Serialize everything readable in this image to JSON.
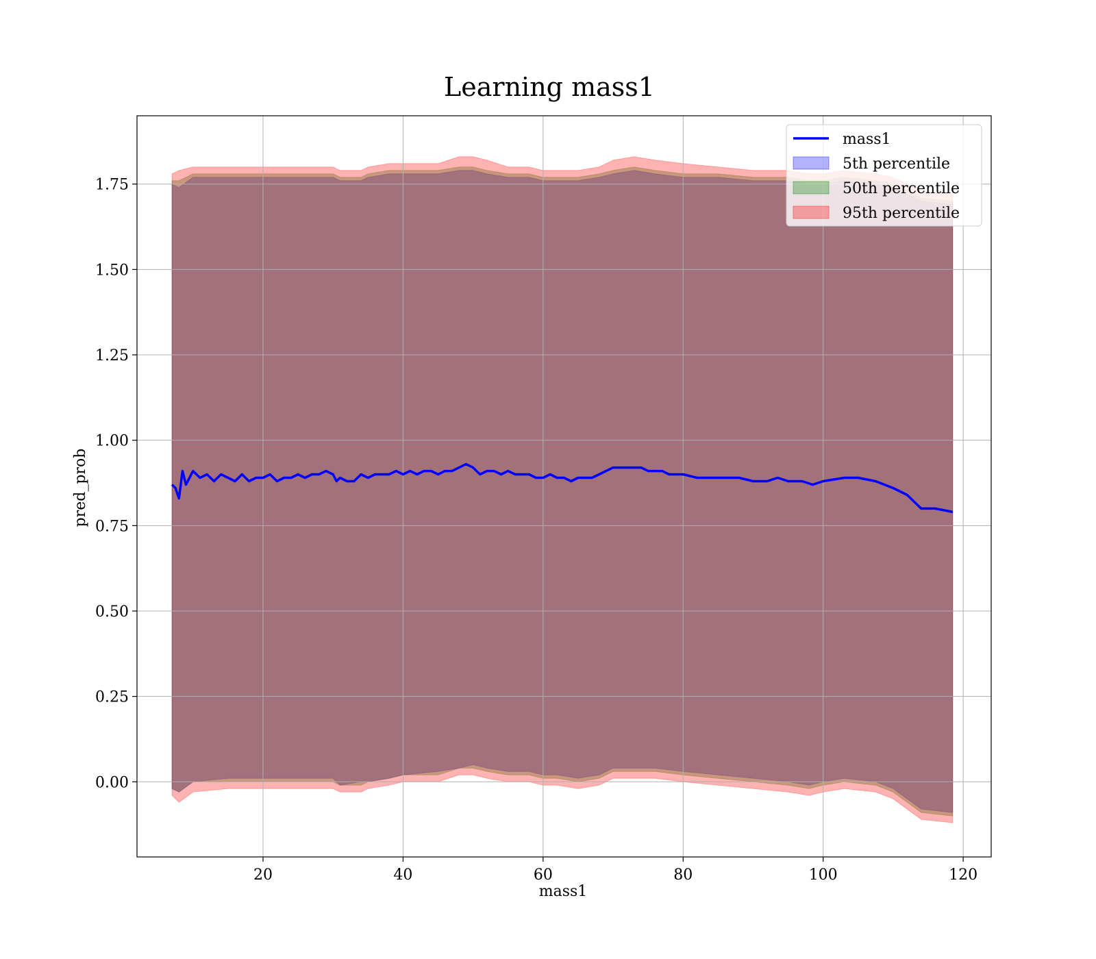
{
  "chart_data": {
    "type": "line",
    "title": "Learning mass1",
    "xlabel": "mass1",
    "ylabel": "pred_prob",
    "xlim": [
      2,
      124
    ],
    "ylim": [
      -0.22,
      1.95
    ],
    "xticks": [
      "20",
      "40",
      "60",
      "80",
      "100",
      "120"
    ],
    "xtick_values": [
      20,
      40,
      60,
      80,
      100,
      120
    ],
    "yticks": [
      "0.00",
      "0.25",
      "0.50",
      "0.75",
      "1.00",
      "1.25",
      "1.50",
      "1.75"
    ],
    "ytick_values": [
      0,
      0.25,
      0.5,
      0.75,
      1.0,
      1.25,
      1.5,
      1.75
    ],
    "grid": true,
    "legend_position": "top-right",
    "legend": [
      "mass1",
      "5th percentile",
      "50th percentile",
      "95th percentile"
    ],
    "series": [
      {
        "name": "mass1",
        "kind": "line",
        "color": "#0000ff",
        "x": [
          7.0,
          7.5,
          8.0,
          8.5,
          9.0,
          10.0,
          11.0,
          12.0,
          13.0,
          14.0,
          15.0,
          16.0,
          17.0,
          18.0,
          19.0,
          20.0,
          21.0,
          22.0,
          23.0,
          24.0,
          25.0,
          26.0,
          27.0,
          28.0,
          29.0,
          30.0,
          30.5,
          31.0,
          32.0,
          33.0,
          34.0,
          35.0,
          36.0,
          37.0,
          38.0,
          39.0,
          40.0,
          41.0,
          42.0,
          43.0,
          44.0,
          45.0,
          46.0,
          47.0,
          48.0,
          49.0,
          50.0,
          51.0,
          52.0,
          53.0,
          54.0,
          55.0,
          56.0,
          57.0,
          58.0,
          59.0,
          60.0,
          61.0,
          62.0,
          63.0,
          64.0,
          65.0,
          66.0,
          67.0,
          68.0,
          69.0,
          70.0,
          71.0,
          72.0,
          73.0,
          74.0,
          75.0,
          76.0,
          77.0,
          78.0,
          80.0,
          82.0,
          84.0,
          86.0,
          88.0,
          90.0,
          92.0,
          93.5,
          95.0,
          97.0,
          98.5,
          100.0,
          103.0,
          105.0,
          107.5,
          110.0,
          112.0,
          114.0,
          116.0,
          118.5
        ],
        "y": [
          0.87,
          0.86,
          0.83,
          0.91,
          0.87,
          0.91,
          0.89,
          0.9,
          0.88,
          0.9,
          0.89,
          0.88,
          0.9,
          0.88,
          0.89,
          0.89,
          0.9,
          0.88,
          0.89,
          0.89,
          0.9,
          0.89,
          0.9,
          0.9,
          0.91,
          0.9,
          0.88,
          0.89,
          0.88,
          0.88,
          0.9,
          0.89,
          0.9,
          0.9,
          0.9,
          0.91,
          0.9,
          0.91,
          0.9,
          0.91,
          0.91,
          0.9,
          0.91,
          0.91,
          0.92,
          0.93,
          0.92,
          0.9,
          0.91,
          0.91,
          0.9,
          0.91,
          0.9,
          0.9,
          0.9,
          0.89,
          0.89,
          0.9,
          0.89,
          0.89,
          0.88,
          0.89,
          0.89,
          0.89,
          0.9,
          0.91,
          0.92,
          0.92,
          0.92,
          0.92,
          0.92,
          0.91,
          0.91,
          0.91,
          0.9,
          0.9,
          0.89,
          0.89,
          0.89,
          0.89,
          0.88,
          0.88,
          0.89,
          0.88,
          0.88,
          0.87,
          0.88,
          0.89,
          0.89,
          0.88,
          0.86,
          0.84,
          0.8,
          0.8,
          0.79
        ]
      },
      {
        "name": "5th percentile",
        "kind": "band",
        "color": "#0000ff",
        "alpha": 0.3,
        "x": [
          7.0,
          8.0,
          10.0,
          15.0,
          20.0,
          25.0,
          30.0,
          31.0,
          34.0,
          35.0,
          38.0,
          40.0,
          45.0,
          48.0,
          50.0,
          52.0,
          55.0,
          58.0,
          60.0,
          62.0,
          65.0,
          68.0,
          70.0,
          73.0,
          76.0,
          80.0,
          85.0,
          90.0,
          95.0,
          98.0,
          100.0,
          103.0,
          107.5,
          110.0,
          112.0,
          114.0,
          118.5
        ],
        "lower": [
          -0.02,
          -0.03,
          0.0,
          0.01,
          0.01,
          0.01,
          0.01,
          -0.01,
          0.0,
          0.0,
          0.01,
          0.02,
          0.03,
          0.04,
          0.05,
          0.04,
          0.03,
          0.03,
          0.02,
          0.02,
          0.01,
          0.02,
          0.04,
          0.04,
          0.04,
          0.03,
          0.02,
          0.01,
          0.0,
          -0.01,
          0.0,
          0.01,
          0.0,
          -0.02,
          -0.05,
          -0.08,
          -0.09
        ],
        "upper": [
          1.75,
          1.74,
          1.77,
          1.77,
          1.77,
          1.77,
          1.77,
          1.76,
          1.76,
          1.77,
          1.78,
          1.78,
          1.78,
          1.79,
          1.79,
          1.78,
          1.77,
          1.77,
          1.76,
          1.76,
          1.76,
          1.77,
          1.78,
          1.79,
          1.78,
          1.77,
          1.77,
          1.76,
          1.76,
          1.75,
          1.75,
          1.76,
          1.75,
          1.74,
          1.72,
          1.7,
          1.69
        ]
      },
      {
        "name": "50th percentile",
        "kind": "band",
        "color": "#008000",
        "alpha": 0.3,
        "x": [
          7.0,
          8.0,
          10.0,
          15.0,
          20.0,
          25.0,
          30.0,
          31.0,
          34.0,
          35.0,
          38.0,
          40.0,
          45.0,
          48.0,
          50.0,
          52.0,
          55.0,
          58.0,
          60.0,
          62.0,
          65.0,
          68.0,
          70.0,
          73.0,
          76.0,
          80.0,
          85.0,
          90.0,
          95.0,
          98.0,
          100.0,
          103.0,
          107.5,
          110.0,
          112.0,
          114.0,
          118.5
        ],
        "lower": [
          -0.02,
          -0.03,
          0.0,
          0.0,
          0.0,
          0.0,
          0.0,
          -0.01,
          -0.01,
          0.0,
          0.01,
          0.02,
          0.02,
          0.04,
          0.04,
          0.03,
          0.02,
          0.02,
          0.01,
          0.01,
          0.0,
          0.01,
          0.03,
          0.03,
          0.03,
          0.02,
          0.01,
          0.0,
          -0.01,
          -0.02,
          -0.01,
          0.0,
          -0.01,
          -0.03,
          -0.06,
          -0.09,
          -0.1
        ],
        "upper": [
          1.76,
          1.76,
          1.78,
          1.78,
          1.78,
          1.78,
          1.78,
          1.77,
          1.77,
          1.78,
          1.79,
          1.79,
          1.79,
          1.8,
          1.8,
          1.79,
          1.78,
          1.78,
          1.77,
          1.77,
          1.77,
          1.78,
          1.79,
          1.8,
          1.79,
          1.78,
          1.78,
          1.77,
          1.77,
          1.76,
          1.76,
          1.77,
          1.76,
          1.75,
          1.73,
          1.71,
          1.7
        ]
      },
      {
        "name": "95th percentile",
        "kind": "band",
        "color": "#ff0000",
        "alpha": 0.3,
        "x": [
          7.0,
          8.0,
          10.0,
          15.0,
          20.0,
          25.0,
          30.0,
          31.0,
          34.0,
          35.0,
          38.0,
          40.0,
          45.0,
          48.0,
          50.0,
          52.0,
          55.0,
          58.0,
          60.0,
          62.0,
          65.0,
          68.0,
          70.0,
          73.0,
          76.0,
          80.0,
          85.0,
          90.0,
          95.0,
          98.0,
          100.0,
          103.0,
          107.5,
          110.0,
          112.0,
          114.0,
          118.5
        ],
        "lower": [
          -0.04,
          -0.06,
          -0.03,
          -0.02,
          -0.02,
          -0.02,
          -0.02,
          -0.03,
          -0.03,
          -0.02,
          -0.01,
          0.0,
          0.0,
          0.02,
          0.02,
          0.01,
          0.0,
          0.0,
          -0.01,
          -0.01,
          -0.02,
          -0.01,
          0.01,
          0.01,
          0.01,
          0.0,
          -0.01,
          -0.02,
          -0.03,
          -0.04,
          -0.03,
          -0.02,
          -0.03,
          -0.05,
          -0.08,
          -0.11,
          -0.12
        ],
        "upper": [
          1.78,
          1.79,
          1.8,
          1.8,
          1.8,
          1.8,
          1.8,
          1.79,
          1.79,
          1.8,
          1.81,
          1.81,
          1.81,
          1.83,
          1.83,
          1.82,
          1.8,
          1.8,
          1.79,
          1.79,
          1.79,
          1.8,
          1.82,
          1.83,
          1.82,
          1.81,
          1.8,
          1.79,
          1.79,
          1.78,
          1.78,
          1.79,
          1.78,
          1.77,
          1.75,
          1.73,
          1.72
        ]
      }
    ]
  }
}
